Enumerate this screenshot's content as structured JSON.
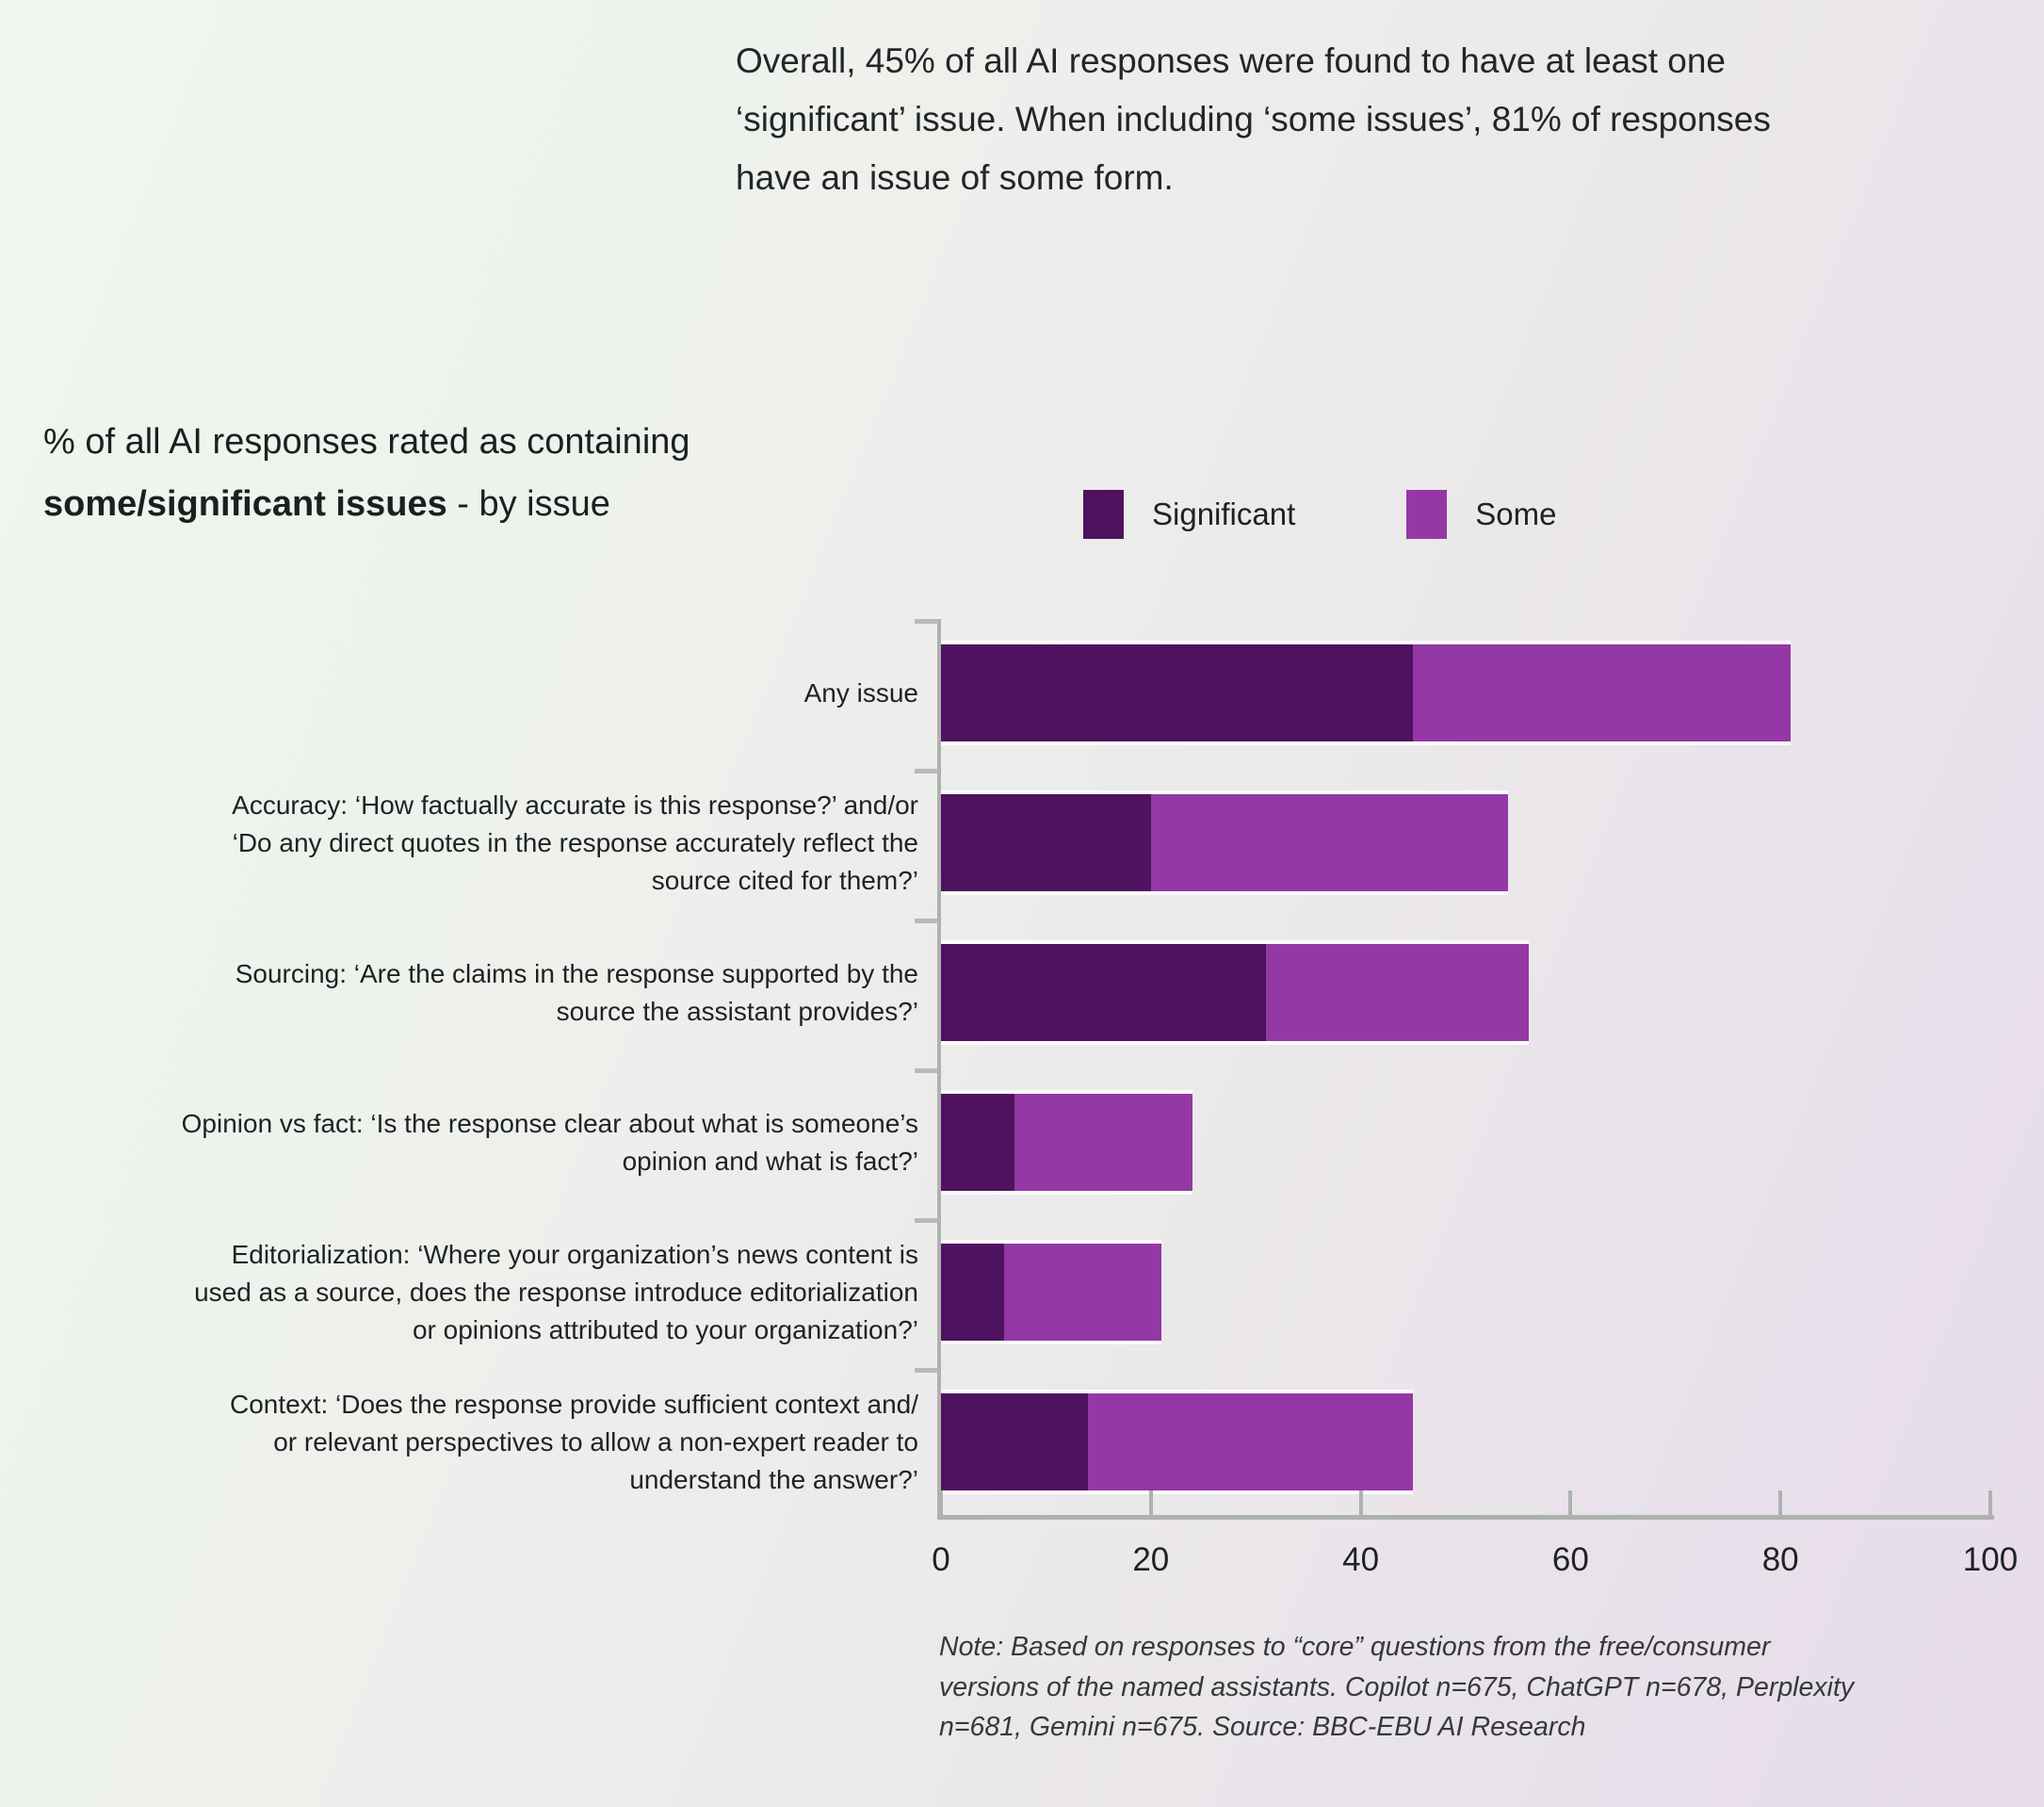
{
  "intro": {
    "text": "Overall, 45% of all AI responses were found to have at least one\n‘significant’ issue. When including ‘some issues’, 81% of responses\nhave an issue of some form."
  },
  "title": {
    "line1": "% of all AI responses rated as containing",
    "line2_bold": "some/significant issues",
    "line2_rest": " - by issue"
  },
  "chart_data": {
    "type": "bar",
    "orientation": "horizontal",
    "stacked": true,
    "title": "% of all AI responses rated as containing some/significant issues - by issue",
    "categories": [
      "Any issue",
      "Accuracy: ‘How factually accurate is this response?’ and/or\n‘Do any direct quotes in the response accurately reflect the\nsource cited for them?’",
      "Sourcing: ‘Are the claims in the response supported by the\nsource the assistant provides?’",
      "Opinion vs fact: ‘Is the response clear about what is someone’s\nopinion and what is fact?’",
      "Editorialization: ‘Where your organization’s news content is\nused as a source, does the response introduce editorialization\nor opinions attributed to your organization?’",
      "Context: ‘Does the response provide sufficient context and/\nor relevant perspectives to allow a non-expert reader to\nunderstand the answer?’"
    ],
    "series": [
      {
        "name": "Significant",
        "color": "#4f125f",
        "values": [
          45,
          20,
          31,
          7,
          6,
          14
        ]
      },
      {
        "name": "Some",
        "color": "#9438a5",
        "values": [
          36,
          34,
          25,
          17,
          15,
          31
        ]
      }
    ],
    "stack_totals": [
      81,
      54,
      56,
      24,
      21,
      45
    ],
    "xlabel": "",
    "ylabel": "",
    "xlim": [
      0,
      100
    ],
    "x_ticks": [
      0,
      20,
      40,
      60,
      80,
      100
    ],
    "grid": false,
    "legend_position": "top-right"
  },
  "note": {
    "text": "Note: Based on responses to “core” questions from the free/consumer\nversions of the named assistants. Copilot n=675, ChatGPT n=678, Perplexity\nn=681, Gemini n=675. Source: BBC-EBU AI Research"
  }
}
